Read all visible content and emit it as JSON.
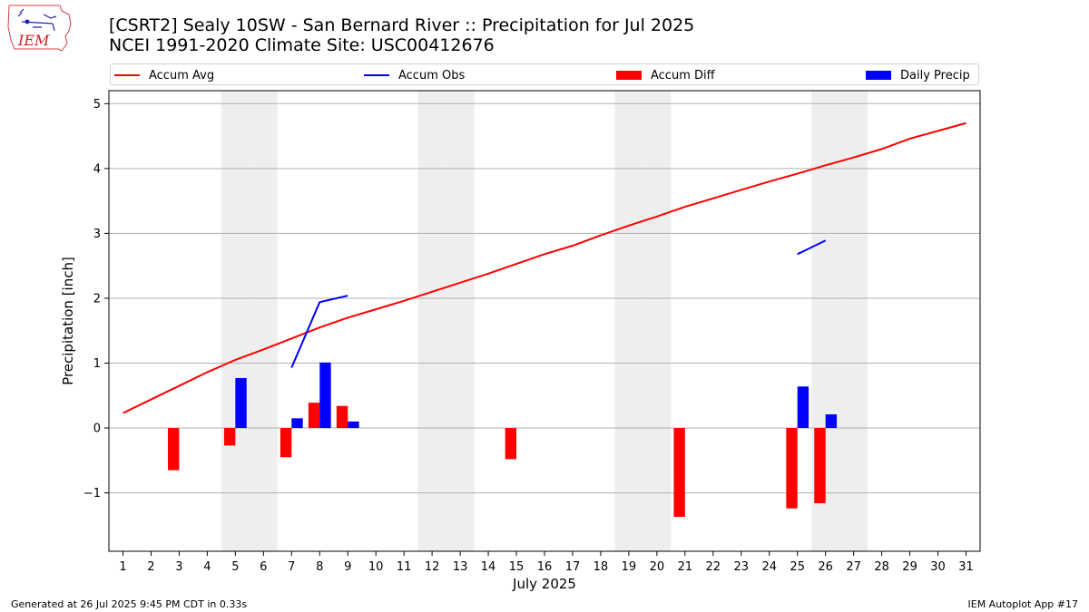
{
  "title_line1": "[CSRT2] Sealy 10SW - San Bernard River :: Precipitation for Jul 2025",
  "title_line2": "NCEI 1991-2020 Climate Site: USC00412676",
  "logo_text": "IEM",
  "footer_left": "Generated at 26 Jul 2025 9:45 PM CDT in 0.33s",
  "footer_right": "IEM Autoplot App #17",
  "colors": {
    "avg": "#ff0000",
    "obs": "#0000ff",
    "diff": "#ff0000",
    "daily": "#0000ff",
    "weekend": "#eeeeee"
  },
  "chart_data": {
    "type": "bar",
    "xlabel": "July 2025",
    "ylabel": "Precipitation [inch]",
    "xlim": [
      0.5,
      31.5
    ],
    "ylim": [
      -1.9,
      5.2
    ],
    "yticks": [
      -1,
      0,
      1,
      2,
      3,
      4,
      5
    ],
    "grid": true,
    "legend_position": "top",
    "legend": [
      "Accum Avg",
      "Accum Obs",
      "Accum Diff",
      "Daily Precip"
    ],
    "days": [
      1,
      2,
      3,
      4,
      5,
      6,
      7,
      8,
      9,
      10,
      11,
      12,
      13,
      14,
      15,
      16,
      17,
      18,
      19,
      20,
      21,
      22,
      23,
      24,
      25,
      26,
      27,
      28,
      29,
      30,
      31
    ],
    "weekend_days": [
      5,
      6,
      12,
      13,
      19,
      20,
      26,
      27
    ],
    "accum_avg": [
      0.23,
      0.44,
      0.65,
      0.86,
      1.05,
      1.21,
      1.38,
      1.55,
      1.7,
      1.83,
      1.96,
      2.1,
      2.24,
      2.38,
      2.53,
      2.68,
      2.81,
      2.97,
      3.12,
      3.26,
      3.41,
      3.54,
      3.67,
      3.8,
      3.92,
      4.05,
      4.17,
      4.3,
      4.46,
      4.58,
      4.7
    ],
    "accum_obs_segments": [
      [
        [
          7,
          0.93
        ],
        [
          8,
          1.94
        ],
        [
          9,
          2.04
        ]
      ],
      [
        [
          25,
          2.68
        ],
        [
          26,
          2.89
        ]
      ]
    ],
    "accum_diff": [
      {
        "day": 3,
        "value": -0.65
      },
      {
        "day": 5,
        "value": -0.27
      },
      {
        "day": 7,
        "value": -0.45
      },
      {
        "day": 8,
        "value": 0.39
      },
      {
        "day": 9,
        "value": 0.34
      },
      {
        "day": 15,
        "value": -0.48
      },
      {
        "day": 21,
        "value": -1.37
      },
      {
        "day": 25,
        "value": -1.24
      },
      {
        "day": 26,
        "value": -1.16
      }
    ],
    "daily_precip": [
      {
        "day": 5,
        "value": 0.77
      },
      {
        "day": 7,
        "value": 0.15
      },
      {
        "day": 8,
        "value": 1.01
      },
      {
        "day": 9,
        "value": 0.1
      },
      {
        "day": 25,
        "value": 0.64
      },
      {
        "day": 26,
        "value": 0.21
      }
    ]
  }
}
